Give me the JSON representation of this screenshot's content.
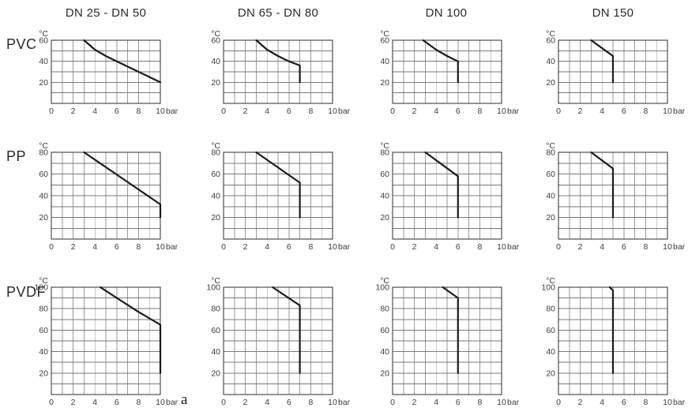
{
  "columns": [
    "DN 25 - DN 50",
    "DN 65 - DN 80",
    "DN 100",
    "DN 150"
  ],
  "rows": [
    "PVC",
    "PP",
    "PVDF"
  ],
  "figure_label": "a",
  "colors": {
    "curve": "#1c1c1c",
    "grid_v": "#9a9a9a",
    "grid_h": "#7a7a7a",
    "border": "#2d2d2d",
    "text": "#3d3d3d"
  },
  "axis_common": {
    "x_unit": "bar",
    "y_unit": "°C",
    "x_ticks": [
      0,
      2,
      4,
      6,
      8,
      10
    ],
    "x_range": [
      0,
      10
    ],
    "x_grid_step": 1,
    "y_grid_step": 10,
    "grid": true,
    "legend": false
  },
  "chart_data": [
    {
      "type": "line",
      "material": "PVC",
      "size": "DN 25 - DN 50",
      "xlabel": "bar",
      "ylabel": "°C",
      "x_range": [
        0,
        10
      ],
      "y_range": [
        0,
        60
      ],
      "y_ticks": [
        20,
        40,
        60
      ],
      "x_ticks": [
        0,
        2,
        4,
        6,
        8,
        10
      ],
      "curve": [
        [
          3,
          60
        ],
        [
          4,
          51
        ],
        [
          5,
          45
        ],
        [
          6,
          40
        ],
        [
          8,
          30
        ],
        [
          10,
          20
        ]
      ]
    },
    {
      "type": "line",
      "material": "PVC",
      "size": "DN 65 - DN 80",
      "xlabel": "bar",
      "ylabel": "°C",
      "x_range": [
        0,
        10
      ],
      "y_range": [
        0,
        60
      ],
      "y_ticks": [
        20,
        40,
        60
      ],
      "x_ticks": [
        0,
        2,
        4,
        6,
        8,
        10
      ],
      "curve": [
        [
          3,
          60
        ],
        [
          4,
          51
        ],
        [
          5,
          45
        ],
        [
          6,
          40
        ],
        [
          7,
          36
        ],
        [
          7,
          20
        ]
      ]
    },
    {
      "type": "line",
      "material": "PVC",
      "size": "DN 100",
      "xlabel": "bar",
      "ylabel": "°C",
      "x_range": [
        0,
        10
      ],
      "y_range": [
        0,
        60
      ],
      "y_ticks": [
        20,
        40,
        60
      ],
      "x_ticks": [
        0,
        2,
        4,
        6,
        8,
        10
      ],
      "curve": [
        [
          2.8,
          60
        ],
        [
          4,
          51
        ],
        [
          5,
          45
        ],
        [
          6,
          40
        ],
        [
          6,
          20
        ]
      ]
    },
    {
      "type": "line",
      "material": "PVC",
      "size": "DN 150",
      "xlabel": "bar",
      "ylabel": "°C",
      "x_range": [
        0,
        10
      ],
      "y_range": [
        0,
        60
      ],
      "y_ticks": [
        20,
        40,
        60
      ],
      "x_ticks": [
        0,
        2,
        4,
        6,
        8,
        10
      ],
      "curve": [
        [
          3,
          60
        ],
        [
          5,
          45
        ],
        [
          5,
          20
        ]
      ]
    },
    {
      "type": "line",
      "material": "PP",
      "size": "DN 25 - DN 50",
      "xlabel": "bar",
      "ylabel": "°C",
      "x_range": [
        0,
        10
      ],
      "y_range": [
        0,
        80
      ],
      "y_ticks": [
        20,
        40,
        60,
        80
      ],
      "x_ticks": [
        0,
        2,
        4,
        6,
        8,
        10
      ],
      "curve": [
        [
          3,
          80
        ],
        [
          10,
          32
        ],
        [
          10,
          20
        ]
      ]
    },
    {
      "type": "line",
      "material": "PP",
      "size": "DN 65 - DN 80",
      "xlabel": "bar",
      "ylabel": "°C",
      "x_range": [
        0,
        10
      ],
      "y_range": [
        0,
        80
      ],
      "y_ticks": [
        20,
        40,
        60,
        80
      ],
      "x_ticks": [
        0,
        2,
        4,
        6,
        8,
        10
      ],
      "curve": [
        [
          3,
          80
        ],
        [
          7,
          52
        ],
        [
          7,
          20
        ]
      ]
    },
    {
      "type": "line",
      "material": "PP",
      "size": "DN 100",
      "xlabel": "bar",
      "ylabel": "°C",
      "x_range": [
        0,
        10
      ],
      "y_range": [
        0,
        80
      ],
      "y_ticks": [
        20,
        40,
        60,
        80
      ],
      "x_ticks": [
        0,
        2,
        4,
        6,
        8,
        10
      ],
      "curve": [
        [
          3,
          80
        ],
        [
          6,
          58
        ],
        [
          6,
          20
        ]
      ]
    },
    {
      "type": "line",
      "material": "PP",
      "size": "DN 150",
      "xlabel": "bar",
      "ylabel": "°C",
      "x_range": [
        0,
        10
      ],
      "y_range": [
        0,
        80
      ],
      "y_ticks": [
        20,
        40,
        60,
        80
      ],
      "x_ticks": [
        0,
        2,
        4,
        6,
        8,
        10
      ],
      "curve": [
        [
          3,
          80
        ],
        [
          5,
          65
        ],
        [
          5,
          20
        ]
      ]
    },
    {
      "type": "line",
      "material": "PVDF",
      "size": "DN 25 - DN 50",
      "xlabel": "bar",
      "ylabel": "°C",
      "x_range": [
        0,
        10
      ],
      "y_range": [
        0,
        100
      ],
      "y_ticks": [
        20,
        40,
        60,
        80,
        100
      ],
      "x_ticks": [
        0,
        2,
        4,
        6,
        8,
        10
      ],
      "curve": [
        [
          4.5,
          100
        ],
        [
          6,
          90
        ],
        [
          8,
          77
        ],
        [
          10,
          65
        ],
        [
          10,
          20
        ]
      ]
    },
    {
      "type": "line",
      "material": "PVDF",
      "size": "DN 65 - DN 80",
      "xlabel": "bar",
      "ylabel": "°C",
      "x_range": [
        0,
        10
      ],
      "y_range": [
        0,
        100
      ],
      "y_ticks": [
        20,
        40,
        60,
        80,
        100
      ],
      "x_ticks": [
        0,
        2,
        4,
        6,
        8,
        10
      ],
      "curve": [
        [
          4.5,
          100
        ],
        [
          7,
          83
        ],
        [
          7,
          20
        ]
      ]
    },
    {
      "type": "line",
      "material": "PVDF",
      "size": "DN 100",
      "xlabel": "bar",
      "ylabel": "°C",
      "x_range": [
        0,
        10
      ],
      "y_range": [
        0,
        100
      ],
      "y_ticks": [
        20,
        40,
        60,
        80,
        100
      ],
      "x_ticks": [
        0,
        2,
        4,
        6,
        8,
        10
      ],
      "curve": [
        [
          4.6,
          100
        ],
        [
          6,
          90
        ],
        [
          6,
          20
        ]
      ]
    },
    {
      "type": "line",
      "material": "PVDF",
      "size": "DN 150",
      "xlabel": "bar",
      "ylabel": "°C",
      "x_range": [
        0,
        10
      ],
      "y_range": [
        0,
        100
      ],
      "y_ticks": [
        20,
        40,
        60,
        80,
        100
      ],
      "x_ticks": [
        0,
        2,
        4,
        6,
        8,
        10
      ],
      "curve": [
        [
          4.7,
          100
        ],
        [
          5,
          97
        ],
        [
          5,
          20
        ]
      ]
    }
  ]
}
